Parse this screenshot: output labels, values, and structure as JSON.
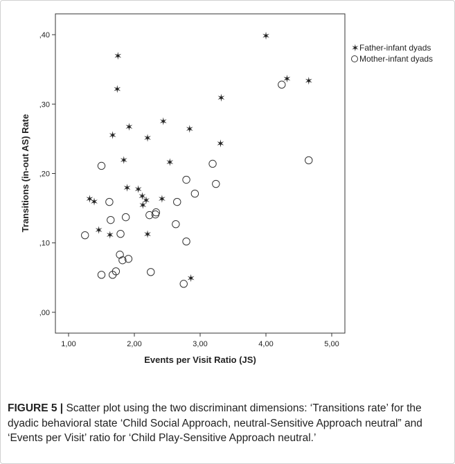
{
  "chart_data": {
    "type": "scatter",
    "xlabel": "Events per Visit Ratio (JS)",
    "ylabel": "Transitions (in-out AS) Rate",
    "xlim": [
      0.8,
      5.2
    ],
    "ylim": [
      -0.03,
      0.43
    ],
    "x_ticks": [
      1.0,
      2.0,
      3.0,
      4.0,
      5.0
    ],
    "x_tick_labels": [
      "1,00",
      "2,00",
      "3,00",
      "4,00",
      "5,00"
    ],
    "y_ticks": [
      0.0,
      0.1,
      0.2,
      0.3,
      0.4
    ],
    "y_tick_labels": [
      ",00",
      ",10",
      ",20",
      ",30",
      ",40"
    ],
    "grid": false,
    "legend_position": "top-right, outside plot",
    "series": [
      {
        "name": "Father-infant dyads",
        "marker": "star",
        "points": [
          [
            4.0,
            0.398
          ],
          [
            1.75,
            0.369
          ],
          [
            1.74,
            0.321
          ],
          [
            4.32,
            0.336
          ],
          [
            4.65,
            0.333
          ],
          [
            3.32,
            0.309
          ],
          [
            2.44,
            0.275
          ],
          [
            1.92,
            0.267
          ],
          [
            2.84,
            0.264
          ],
          [
            1.67,
            0.255
          ],
          [
            2.2,
            0.251
          ],
          [
            3.31,
            0.243
          ],
          [
            1.84,
            0.219
          ],
          [
            2.54,
            0.216
          ],
          [
            1.89,
            0.179
          ],
          [
            2.06,
            0.177
          ],
          [
            2.12,
            0.167
          ],
          [
            1.32,
            0.163
          ],
          [
            2.18,
            0.161
          ],
          [
            2.42,
            0.163
          ],
          [
            1.39,
            0.159
          ],
          [
            2.13,
            0.154
          ],
          [
            1.46,
            0.118
          ],
          [
            1.63,
            0.111
          ],
          [
            2.2,
            0.112
          ],
          [
            2.86,
            0.049
          ]
        ]
      },
      {
        "name": "Mother-infant dyads",
        "marker": "circle",
        "points": [
          [
            4.24,
            0.328
          ],
          [
            4.65,
            0.219
          ],
          [
            3.19,
            0.214
          ],
          [
            1.5,
            0.211
          ],
          [
            2.79,
            0.191
          ],
          [
            3.24,
            0.185
          ],
          [
            2.92,
            0.171
          ],
          [
            1.62,
            0.159
          ],
          [
            2.65,
            0.159
          ],
          [
            2.33,
            0.144
          ],
          [
            2.32,
            0.141
          ],
          [
            2.23,
            0.14
          ],
          [
            1.87,
            0.137
          ],
          [
            1.64,
            0.133
          ],
          [
            2.63,
            0.127
          ],
          [
            1.79,
            0.113
          ],
          [
            1.25,
            0.111
          ],
          [
            2.79,
            0.102
          ],
          [
            1.78,
            0.083
          ],
          [
            1.91,
            0.077
          ],
          [
            1.82,
            0.075
          ],
          [
            1.72,
            0.059
          ],
          [
            2.25,
            0.058
          ],
          [
            1.5,
            0.054
          ],
          [
            1.67,
            0.054
          ],
          [
            2.75,
            0.041
          ]
        ]
      }
    ]
  },
  "caption": {
    "label": "FIGURE 5 |",
    "text": " Scatter plot using the two discriminant dimensions: ‘Transitions rate’ for the dyadic behavioral state ‘Child Social Approach, neutral-Sensitive Approach neutral” and ‘Events per Visit’ ratio for ‘Child Play-Sensitive Approach neutral.’"
  }
}
